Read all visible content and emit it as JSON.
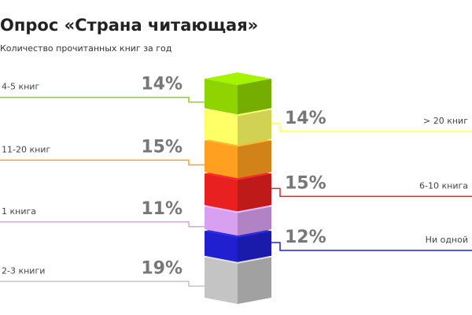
{
  "chart_data": {
    "type": "cube-stack",
    "title": "Опрос «Страна читающая»",
    "subtitle": "Количество прочитанных книг за год",
    "categories": [
      "4-5 книг",
      "> 20 книг",
      "11-20 книг",
      "6-10 книга",
      "1 книга",
      "Ни одной",
      "2-3 книги"
    ],
    "values": [
      14,
      14,
      15,
      15,
      11,
      12,
      19
    ],
    "value_labels": [
      "14%",
      "14%",
      "15%",
      "15%",
      "11%",
      "12%",
      "19%"
    ],
    "colors": [
      "#8fd400",
      "#ffff66",
      "#ffa020",
      "#e82020",
      "#d8a0f0",
      "#2020d0",
      "#c4c4c4"
    ],
    "sides": [
      "left",
      "right",
      "left",
      "right",
      "left",
      "right",
      "left"
    ]
  }
}
